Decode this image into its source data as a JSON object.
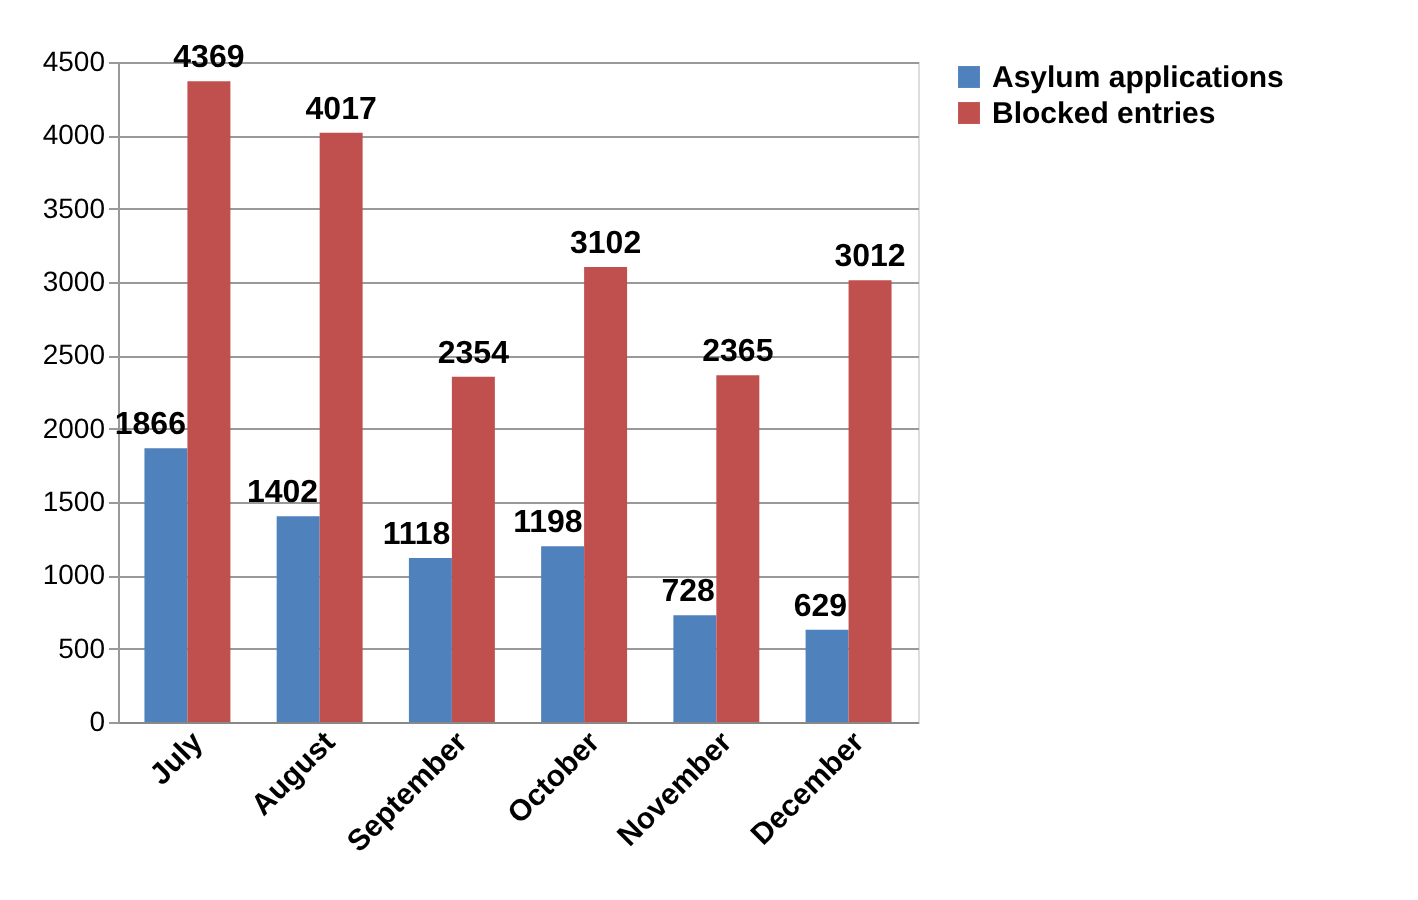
{
  "chart_data": {
    "type": "bar",
    "categories": [
      "July",
      "August",
      "September",
      "October",
      "November",
      "December"
    ],
    "series": [
      {
        "name": "Asylum applications",
        "color": "#4f81bd",
        "values": [
          1866,
          1402,
          1118,
          1198,
          728,
          629
        ]
      },
      {
        "name": "Blocked entries",
        "color": "#c0504d",
        "values": [
          4369,
          4017,
          2354,
          3102,
          2365,
          3012
        ]
      }
    ],
    "ylim": [
      0,
      4500
    ],
    "yticks": [
      0,
      500,
      1000,
      1500,
      2000,
      2500,
      3000,
      3500,
      4000,
      4500
    ],
    "grid": "y",
    "legend": "right",
    "data_labels": true
  }
}
